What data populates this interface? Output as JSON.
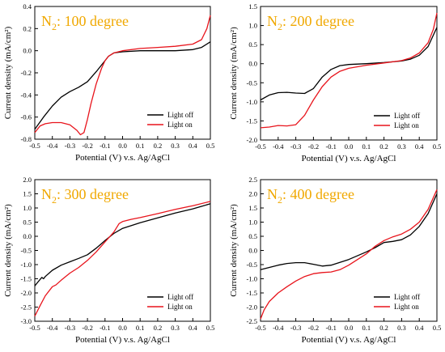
{
  "figure": {
    "background": "#ffffff",
    "title_color": "#f0a800",
    "colors": {
      "light_off": "#000000",
      "light_on": "#e8141c",
      "axis": "#000000"
    }
  },
  "chart_data": [
    {
      "type": "line",
      "title_main": "N",
      "title_sub": "2",
      "title_rest": ": 100 degree",
      "xlabel": "Potential (V) v.s. Ag/AgCl",
      "ylabel": "Current density (mA/cm²)",
      "xlim": [
        -0.5,
        0.5
      ],
      "ylim": [
        -0.8,
        0.4
      ],
      "xticks": [
        "-0.5",
        "-0.4",
        "-0.3",
        "-0.2",
        "-0.1",
        "0.0",
        "0.1",
        "0.2",
        "0.3",
        "0.4",
        "0.5"
      ],
      "yticks": [
        "-0.8",
        "-0.6",
        "-0.4",
        "-0.2",
        "0.0",
        "0.2",
        "0.4"
      ],
      "legend": {
        "placement": "lower-right",
        "labels": [
          "Light off",
          "Light on"
        ]
      },
      "series": [
        {
          "name": "Light off",
          "x": [
            -0.5,
            -0.45,
            -0.4,
            -0.35,
            -0.3,
            -0.25,
            -0.2,
            -0.15,
            -0.12,
            -0.1,
            -0.08,
            -0.05,
            0.0,
            0.1,
            0.2,
            0.3,
            0.4,
            0.45,
            0.5
          ],
          "y": [
            -0.71,
            -0.6,
            -0.5,
            -0.42,
            -0.37,
            -0.33,
            -0.28,
            -0.19,
            -0.13,
            -0.09,
            -0.05,
            -0.02,
            -0.01,
            0.0,
            0.0,
            0.0,
            0.01,
            0.03,
            0.08
          ]
        },
        {
          "name": "Light on",
          "x": [
            -0.5,
            -0.47,
            -0.44,
            -0.4,
            -0.35,
            -0.3,
            -0.26,
            -0.24,
            -0.22,
            -0.2,
            -0.18,
            -0.15,
            -0.12,
            -0.1,
            -0.08,
            -0.05,
            0.0,
            0.1,
            0.2,
            0.3,
            0.4,
            0.45,
            0.48,
            0.5
          ],
          "y": [
            -0.74,
            -0.68,
            -0.66,
            -0.65,
            -0.65,
            -0.67,
            -0.72,
            -0.76,
            -0.74,
            -0.62,
            -0.48,
            -0.3,
            -0.16,
            -0.09,
            -0.05,
            -0.02,
            0.0,
            0.02,
            0.03,
            0.04,
            0.06,
            0.1,
            0.2,
            0.32
          ]
        }
      ]
    },
    {
      "type": "line",
      "title_main": "N",
      "title_sub": "2",
      "title_rest": ": 200 degree",
      "xlabel": "Potential (V) v.s. Ag/AgCl",
      "ylabel": "Current density (mA/cm²)",
      "xlim": [
        -0.5,
        0.5
      ],
      "ylim": [
        -2.0,
        1.5
      ],
      "xticks": [
        "-0.5",
        "-0.4",
        "-0.3",
        "-0.2",
        "-0.1",
        "0.0",
        "0.1",
        "0.2",
        "0.3",
        "0.4",
        "0.5"
      ],
      "yticks": [
        "-2.0",
        "-1.5",
        "-1.0",
        "-0.5",
        "0.0",
        "0.5",
        "1.0",
        "1.5"
      ],
      "legend": {
        "placement": "lower-right",
        "labels": [
          "Light off",
          "Light on"
        ]
      },
      "series": [
        {
          "name": "Light off",
          "x": [
            -0.5,
            -0.45,
            -0.4,
            -0.35,
            -0.3,
            -0.25,
            -0.2,
            -0.15,
            -0.1,
            -0.05,
            0.0,
            0.1,
            0.2,
            0.3,
            0.35,
            0.4,
            0.45,
            0.5
          ],
          "y": [
            -0.95,
            -0.82,
            -0.76,
            -0.75,
            -0.77,
            -0.78,
            -0.65,
            -0.35,
            -0.15,
            -0.05,
            -0.02,
            0.0,
            0.03,
            0.07,
            0.12,
            0.22,
            0.45,
            0.95
          ]
        },
        {
          "name": "Light on",
          "x": [
            -0.5,
            -0.45,
            -0.4,
            -0.35,
            -0.3,
            -0.25,
            -0.2,
            -0.15,
            -0.1,
            -0.05,
            0.0,
            0.1,
            0.2,
            0.3,
            0.35,
            0.4,
            0.45,
            0.48,
            0.5
          ],
          "y": [
            -1.68,
            -1.66,
            -1.62,
            -1.63,
            -1.6,
            -1.35,
            -0.95,
            -0.6,
            -0.35,
            -0.2,
            -0.12,
            -0.04,
            0.02,
            0.08,
            0.15,
            0.28,
            0.55,
            0.9,
            1.33
          ]
        }
      ]
    },
    {
      "type": "line",
      "title_main": "N",
      "title_sub": "2",
      "title_rest": ": 300 degree",
      "xlabel": "Potential (V) v.s. Ag/AgCl",
      "ylabel": "Current density (mA/cm²)",
      "xlim": [
        -0.5,
        0.5
      ],
      "ylim": [
        -3.0,
        2.0
      ],
      "xticks": [
        "-0.5",
        "-0.4",
        "-0.3",
        "-0.2",
        "-0.1",
        "0.0",
        "0.1",
        "0.2",
        "0.3",
        "0.4",
        "0.5"
      ],
      "yticks": [
        "-3.0",
        "-2.5",
        "-2.0",
        "-1.5",
        "-1.0",
        "-0.5",
        "0.0",
        "0.5",
        "1.0",
        "1.5",
        "2.0"
      ],
      "legend": {
        "placement": "lower-right",
        "labels": [
          "Light off",
          "Light on"
        ]
      },
      "series": [
        {
          "name": "Light off",
          "x": [
            -0.5,
            -0.48,
            -0.46,
            -0.45,
            -0.44,
            -0.4,
            -0.35,
            -0.3,
            -0.25,
            -0.2,
            -0.15,
            -0.1,
            -0.05,
            0.0,
            0.05,
            0.1,
            0.2,
            0.3,
            0.4,
            0.5
          ],
          "y": [
            -1.75,
            -1.6,
            -1.45,
            -1.5,
            -1.42,
            -1.2,
            -1.02,
            -0.9,
            -0.78,
            -0.65,
            -0.42,
            -0.15,
            0.1,
            0.28,
            0.38,
            0.48,
            0.65,
            0.82,
            0.97,
            1.15
          ]
        },
        {
          "name": "Light on",
          "x": [
            -0.5,
            -0.47,
            -0.44,
            -0.4,
            -0.38,
            -0.35,
            -0.3,
            -0.25,
            -0.2,
            -0.15,
            -0.1,
            -0.05,
            -0.02,
            0.0,
            0.05,
            0.1,
            0.2,
            0.3,
            0.4,
            0.5
          ],
          "y": [
            -2.82,
            -2.45,
            -2.1,
            -1.78,
            -1.72,
            -1.55,
            -1.3,
            -1.1,
            -0.85,
            -0.55,
            -0.2,
            0.15,
            0.45,
            0.52,
            0.6,
            0.66,
            0.8,
            0.95,
            1.08,
            1.23
          ]
        }
      ]
    },
    {
      "type": "line",
      "title_main": "N",
      "title_sub": "2",
      "title_rest": ": 400 degree",
      "xlabel": "Potential (V) v.s. Ag/AgCl",
      "ylabel": "Current density (mA/cm²)",
      "xlim": [
        -0.5,
        0.5
      ],
      "ylim": [
        -2.5,
        2.5
      ],
      "xticks": [
        "-0.5",
        "-0.4",
        "-0.3",
        "-0.2",
        "-0.1",
        "0.0",
        "0.1",
        "0.2",
        "0.3",
        "0.4",
        "0.5"
      ],
      "yticks": [
        "-2.5",
        "-2.0",
        "-1.5",
        "-1.0",
        "-0.5",
        "0.0",
        "0.5",
        "1.0",
        "1.5",
        "2.0",
        "2.5"
      ],
      "legend": {
        "placement": "lower-right",
        "labels": [
          "Light off",
          "Light on"
        ]
      },
      "series": [
        {
          "name": "Light off",
          "x": [
            -0.5,
            -0.45,
            -0.4,
            -0.35,
            -0.3,
            -0.25,
            -0.2,
            -0.15,
            -0.1,
            -0.05,
            0.0,
            0.1,
            0.15,
            0.2,
            0.25,
            0.3,
            0.35,
            0.4,
            0.45,
            0.5
          ],
          "y": [
            -0.68,
            -0.6,
            -0.52,
            -0.46,
            -0.43,
            -0.43,
            -0.49,
            -0.55,
            -0.52,
            -0.42,
            -0.32,
            -0.05,
            0.1,
            0.28,
            0.32,
            0.38,
            0.55,
            0.85,
            1.3,
            2.0
          ]
        },
        {
          "name": "Light on",
          "x": [
            -0.5,
            -0.48,
            -0.45,
            -0.4,
            -0.35,
            -0.3,
            -0.25,
            -0.2,
            -0.15,
            -0.1,
            -0.05,
            0.0,
            0.1,
            0.15,
            0.2,
            0.25,
            0.3,
            0.35,
            0.4,
            0.45,
            0.5
          ],
          "y": [
            -2.42,
            -2.1,
            -1.8,
            -1.5,
            -1.28,
            -1.08,
            -0.92,
            -0.82,
            -0.78,
            -0.76,
            -0.68,
            -0.52,
            -0.12,
            0.15,
            0.35,
            0.48,
            0.58,
            0.75,
            1.0,
            1.45,
            2.15
          ]
        }
      ]
    }
  ]
}
